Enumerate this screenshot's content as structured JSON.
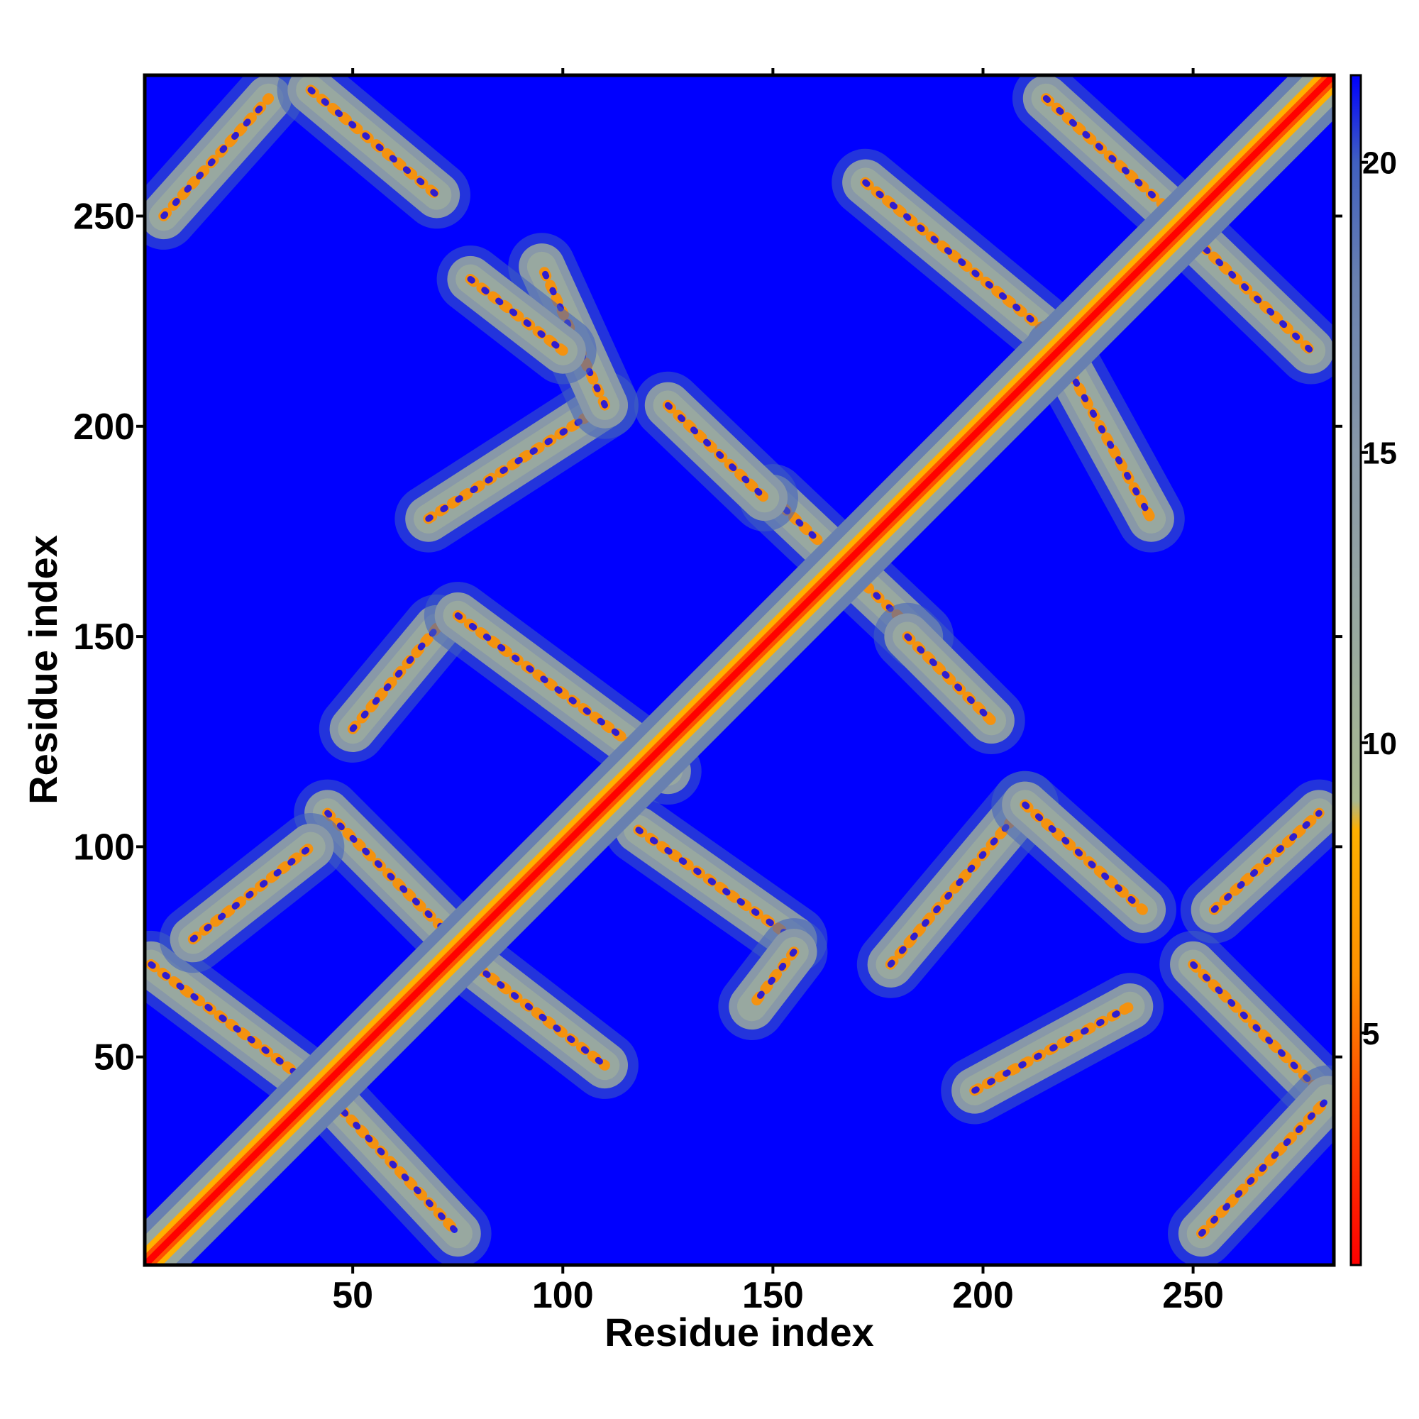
{
  "chart_data": {
    "type": "heatmap",
    "title": "",
    "xlabel": "Residue index",
    "ylabel": "Residue index",
    "xlim": [
      0.5,
      283.5
    ],
    "ylim": [
      0.5,
      283.5
    ],
    "n_residues": 283,
    "x_ticks": [
      50,
      100,
      150,
      200,
      250
    ],
    "x_tick_labels": [
      "50",
      "100",
      "150",
      "200",
      "250"
    ],
    "y_ticks": [
      50,
      100,
      150,
      200,
      250
    ],
    "y_tick_labels": [
      "50",
      "100",
      "150",
      "200",
      "250"
    ],
    "colorbar": {
      "range": [
        1,
        21.5
      ],
      "ticks": [
        5,
        10,
        15,
        20
      ],
      "tick_labels": [
        "5",
        "10",
        "15",
        "20"
      ],
      "stops": [
        {
          "value": 1,
          "color": "#ff0000"
        },
        {
          "value": 4,
          "color": "#ff5000"
        },
        {
          "value": 6,
          "color": "#ff9000"
        },
        {
          "value": 8.5,
          "color": "#ffb000"
        },
        {
          "value": 9,
          "color": "#a8b890"
        },
        {
          "value": 12,
          "color": "#98a8a0"
        },
        {
          "value": 15,
          "color": "#8898a8"
        },
        {
          "value": 18,
          "color": "#6880b0"
        },
        {
          "value": 20,
          "color": "#4060c0"
        },
        {
          "value": 21.5,
          "color": "#0000ff"
        }
      ]
    },
    "background_value": 21.5,
    "background_color": "#0000ff",
    "diagonal_band": {
      "x1": 1,
      "y1": 1,
      "x2": 283,
      "y2": 283
    },
    "contact_bands": [
      {
        "x1": 2,
        "y1": 72,
        "x2": 42,
        "y2": 42
      },
      {
        "x1": 45,
        "y1": 40,
        "x2": 75,
        "y2": 8
      },
      {
        "x1": 75,
        "y1": 75,
        "x2": 110,
        "y2": 48
      },
      {
        "x1": 44,
        "y1": 108,
        "x2": 74,
        "y2": 78
      },
      {
        "x1": 12,
        "y1": 78,
        "x2": 40,
        "y2": 100
      },
      {
        "x1": 50,
        "y1": 128,
        "x2": 70,
        "y2": 152
      },
      {
        "x1": 75,
        "y1": 155,
        "x2": 125,
        "y2": 118
      },
      {
        "x1": 118,
        "y1": 104,
        "x2": 155,
        "y2": 78
      },
      {
        "x1": 155,
        "y1": 75,
        "x2": 145,
        "y2": 62
      },
      {
        "x1": 150,
        "y1": 183,
        "x2": 185,
        "y2": 150
      },
      {
        "x1": 182,
        "y1": 150,
        "x2": 202,
        "y2": 130
      },
      {
        "x1": 125,
        "y1": 205,
        "x2": 148,
        "y2": 183
      },
      {
        "x1": 68,
        "y1": 178,
        "x2": 110,
        "y2": 205
      },
      {
        "x1": 110,
        "y1": 205,
        "x2": 95,
        "y2": 238
      },
      {
        "x1": 78,
        "y1": 235,
        "x2": 100,
        "y2": 218
      },
      {
        "x1": 5,
        "y1": 250,
        "x2": 30,
        "y2": 278
      },
      {
        "x1": 40,
        "y1": 280,
        "x2": 70,
        "y2": 255
      },
      {
        "x1": 172,
        "y1": 258,
        "x2": 218,
        "y2": 220
      },
      {
        "x1": 218,
        "y1": 218,
        "x2": 240,
        "y2": 178
      },
      {
        "x1": 215,
        "y1": 278,
        "x2": 248,
        "y2": 248
      },
      {
        "x1": 250,
        "y1": 245,
        "x2": 278,
        "y2": 218
      },
      {
        "x1": 178,
        "y1": 72,
        "x2": 210,
        "y2": 110
      },
      {
        "x1": 210,
        "y1": 110,
        "x2": 238,
        "y2": 85
      },
      {
        "x1": 198,
        "y1": 42,
        "x2": 235,
        "y2": 62
      },
      {
        "x1": 250,
        "y1": 72,
        "x2": 280,
        "y2": 42
      },
      {
        "x1": 252,
        "y1": 8,
        "x2": 282,
        "y2": 40
      },
      {
        "x1": 255,
        "y1": 85,
        "x2": 280,
        "y2": 108
      }
    ]
  }
}
